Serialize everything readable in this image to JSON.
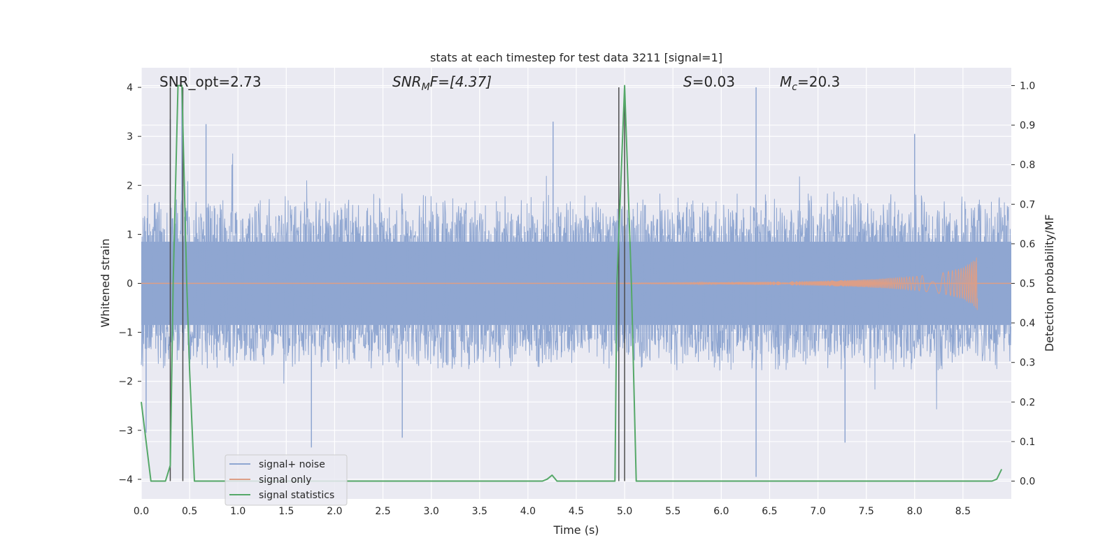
{
  "chart_data": {
    "type": "line",
    "title": "stats at each timestep for test data 3211 [signal=1]",
    "xlabel": "Time (s)",
    "ylabel": "Whitened strain",
    "ylabel_right": "Detection probability/MF",
    "xlim": [
      0.0,
      9.0
    ],
    "ylim": [
      -4.4,
      4.4
    ],
    "ylim_right": [
      -0.045,
      1.045
    ],
    "x_ticks": [
      "0.0",
      "0.5",
      "1.0",
      "1.5",
      "2.0",
      "2.5",
      "3.0",
      "3.5",
      "4.0",
      "4.5",
      "5.0",
      "5.5",
      "6.0",
      "6.5",
      "7.0",
      "7.5",
      "8.0",
      "8.5"
    ],
    "y_ticks": [
      "4",
      "3",
      "2",
      "1",
      "0",
      "−1",
      "−2",
      "−3",
      "−4"
    ],
    "y_ticks_right": [
      "1.0",
      "0.9",
      "0.8",
      "0.7",
      "0.6",
      "0.5",
      "0.4",
      "0.3",
      "0.2",
      "0.1",
      "0.0"
    ],
    "grid": true,
    "legend_position": "lower-left",
    "annotations": {
      "snr_opt": "SNR_opt=2.73",
      "snr_mf_base": "SNR",
      "snr_mf_sub": "M",
      "snr_mf_rest": "F=[4.37]",
      "s_name": "S",
      "s_value": "=0.03",
      "mc_name": "M",
      "mc_sub": "c",
      "mc_value": "=20.3"
    },
    "series": [
      {
        "name": "signal+ noise",
        "color": "#8fa6d1",
        "description_of_values": "whitened strain, noisy data approx. -4 to 4, duration 9 s",
        "noise_envelope_typical": [
          -1.6,
          1.7
        ],
        "peaks_high": [
          [
            0.3,
            3.35
          ],
          [
            0.42,
            4.0
          ],
          [
            0.67,
            3.25
          ],
          [
            4.26,
            3.3
          ],
          [
            6.36,
            4.0
          ],
          [
            8.0,
            3.05
          ]
        ],
        "peaks_low": [
          [
            1.76,
            -3.35
          ],
          [
            2.7,
            -3.15
          ],
          [
            6.36,
            -3.95
          ],
          [
            7.28,
            -3.25
          ],
          [
            0.05,
            -3.05
          ]
        ]
      },
      {
        "name": "signal only",
        "color": "#dd9e86",
        "description_of_values": "chirp growing in amplitude, merger near 8.65 s",
        "x": [
          5.0,
          6.0,
          7.0,
          7.5,
          8.0,
          8.3,
          8.5,
          8.6,
          8.65
        ],
        "amplitude": [
          0.01,
          0.02,
          0.05,
          0.08,
          0.14,
          0.22,
          0.32,
          0.45,
          0.55
        ]
      },
      {
        "name": "signal statistics",
        "color": "#55a868",
        "axis": "right",
        "x": [
          0.0,
          0.05,
          0.1,
          0.25,
          0.3,
          0.33,
          0.38,
          0.42,
          0.47,
          0.5,
          0.55,
          4.15,
          4.2,
          4.25,
          4.3,
          4.9,
          4.92,
          5.0,
          5.07,
          5.12,
          8.8,
          8.85,
          8.9
        ],
        "values": [
          0.2,
          0.1,
          0.0,
          0.0,
          0.04,
          0.5,
          1.0,
          1.0,
          0.5,
          0.28,
          0.0,
          0.0,
          0.005,
          0.015,
          0.0,
          0.0,
          0.5,
          1.0,
          0.5,
          0.0,
          0.0,
          0.005,
          0.03
        ]
      }
    ],
    "vertical_markers": {
      "color": "#4c4c4c",
      "x": [
        0.3,
        0.43,
        4.94,
        5.0
      ],
      "y_top": 4.0
    }
  }
}
